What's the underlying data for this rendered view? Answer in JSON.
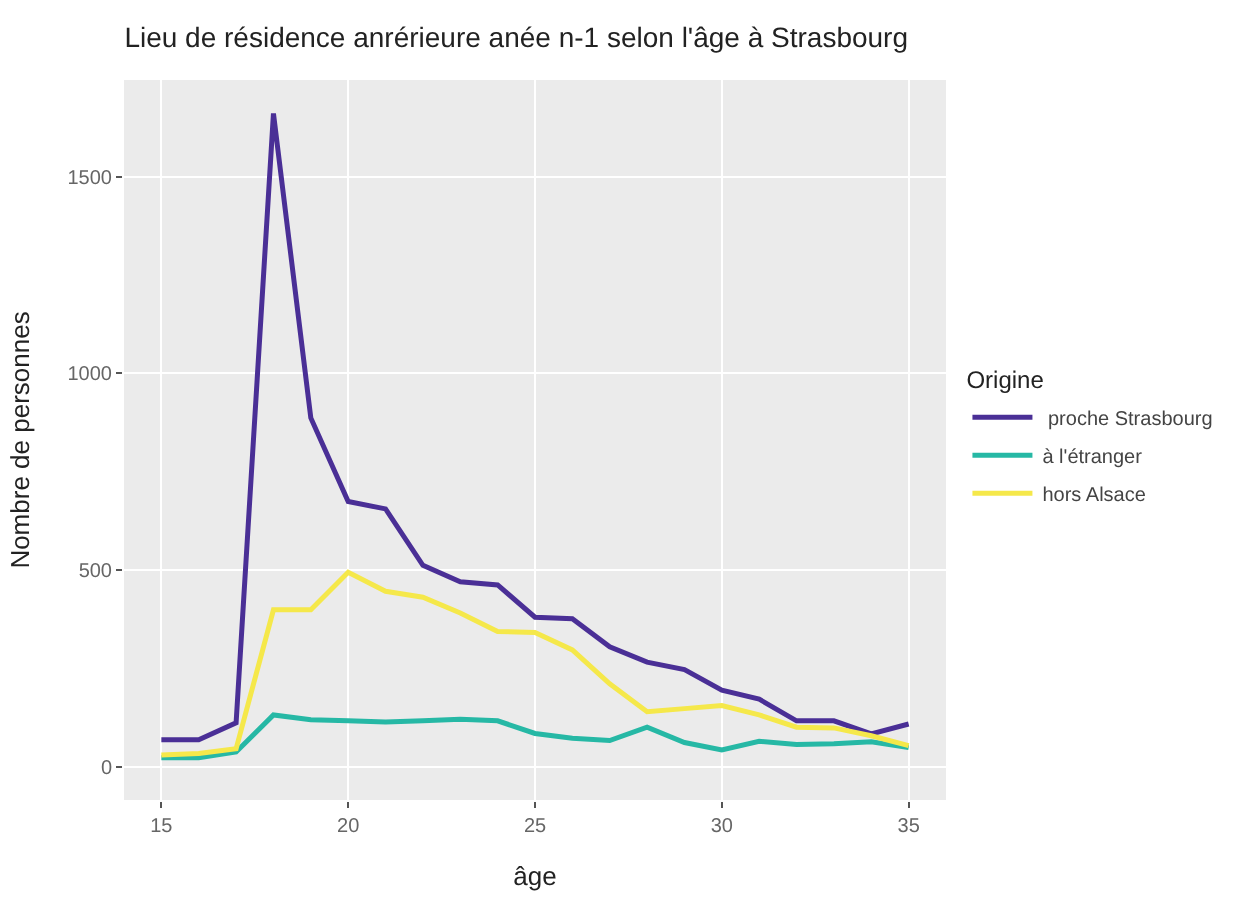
{
  "chart_data": {
    "type": "line",
    "title": "Lieu de résidence anrérieure anée n-1 selon l'âge à Strasbourg",
    "xlabel": "âge",
    "ylabel": "Nombre de personnes",
    "legend_title": "Origine",
    "x": [
      15,
      16,
      17,
      18,
      19,
      20,
      21,
      22,
      23,
      24,
      25,
      26,
      27,
      28,
      29,
      30,
      31,
      32,
      33,
      34,
      35
    ],
    "series": [
      {
        "name": " proche Strasbourg",
        "color": "#4a2f96",
        "values": [
          70,
          70,
          113,
          1660,
          887,
          675,
          656,
          513,
          471,
          463,
          381,
          377,
          306,
          267,
          248,
          196,
          173,
          118,
          118,
          85,
          110
        ]
      },
      {
        "name": "à l'étranger",
        "color": "#26b8a5",
        "values": [
          24,
          24,
          39,
          133,
          121,
          118,
          115,
          118,
          122,
          118,
          86,
          74,
          68,
          102,
          63,
          44,
          66,
          58,
          60,
          65,
          50
        ]
      },
      {
        "name": "hors Alsace",
        "color": "#f5e84a",
        "values": [
          31,
          35,
          47,
          400,
          400,
          495,
          447,
          432,
          392,
          345,
          342,
          298,
          212,
          141,
          149,
          157,
          133,
          102,
          100,
          80,
          55
        ]
      }
    ],
    "xlim": [
      14,
      36
    ],
    "ylim": [
      -83,
      1745
    ],
    "xticks": [
      15,
      20,
      25,
      30,
      35
    ],
    "yticks": [
      0,
      500,
      1000,
      1500
    ],
    "grid": true,
    "legend": "right",
    "line_style": "solid",
    "marker": "none"
  }
}
